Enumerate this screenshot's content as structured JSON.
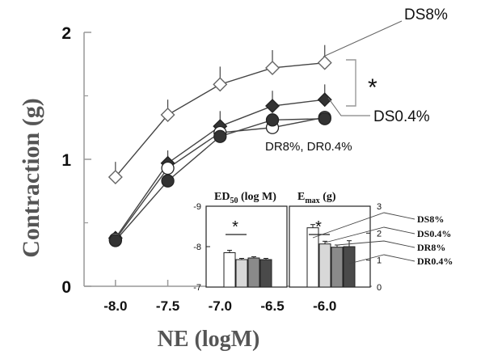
{
  "chart_data": {
    "main": {
      "type": "line",
      "xlabel": "NE (logM)",
      "ylabel": "Contraction (g)",
      "x": [
        -8.0,
        -7.5,
        -7.0,
        -6.5,
        -6.0
      ],
      "x_tick_labels": [
        "-8.0",
        "-7.5",
        "-7.0",
        "-6.5",
        "-6.0"
      ],
      "y_tick_labels": [
        "0",
        "1",
        "2"
      ],
      "ylim": [
        0,
        2
      ],
      "xlim": [
        -8.3,
        -5.55
      ],
      "series": [
        {
          "name": "DS8%",
          "marker": "diamond-open",
          "values": [
            0.86,
            1.35,
            1.59,
            1.72,
            1.76
          ],
          "err": [
            0.12,
            0.12,
            0.14,
            0.14,
            0.14
          ]
        },
        {
          "name": "DS0.4%",
          "marker": "diamond-filled",
          "values": [
            0.38,
            0.97,
            1.26,
            1.42,
            1.47
          ],
          "err": [
            0.0,
            0.1,
            0.12,
            0.12,
            0.12
          ]
        },
        {
          "name": "DR8%",
          "marker": "circle-open",
          "values": [
            0.37,
            0.93,
            1.21,
            1.25,
            1.33
          ],
          "err": [
            0.0,
            0.1,
            0.1,
            0.0,
            0.0
          ]
        },
        {
          "name": "DR0.4%",
          "marker": "circle-filled",
          "values": [
            0.36,
            0.83,
            1.18,
            1.31,
            1.32
          ],
          "err": [
            0.0,
            0.0,
            0.0,
            0.0,
            0.0
          ]
        }
      ],
      "annotations": {
        "ds8_label": "DS8%",
        "ds04_label": "DS0.4%",
        "dr_label": "DR8%, DR0.4%",
        "significance": "*"
      }
    },
    "insets": [
      {
        "type": "bar",
        "title_main": "ED",
        "title_sub": "50",
        "title_rest": " (log M)",
        "y_tick_labels": [
          "-9",
          "-8",
          "-7"
        ],
        "ylim": [
          -7,
          -9
        ],
        "categories": [
          "DS8%",
          "DS0.4%",
          "DR8%",
          "DR0.4%"
        ],
        "values": [
          -7.85,
          -7.68,
          -7.72,
          -7.68
        ],
        "err": [
          0.06,
          0.03,
          0.03,
          0.03
        ],
        "significance": "*"
      },
      {
        "type": "bar",
        "title_main": "E",
        "title_sub": "max",
        "title_rest": " (g)",
        "y_tick_labels": [
          "3",
          "2",
          "1",
          "0"
        ],
        "ylim": [
          0,
          3
        ],
        "categories": [
          "DS8%",
          "DS0.4%",
          "DR8%",
          "DR0.4%"
        ],
        "values": [
          2.2,
          1.6,
          1.48,
          1.5
        ],
        "err": [
          0.12,
          0.1,
          0.08,
          0.22
        ],
        "significance": "*"
      }
    ],
    "inset_legend": [
      "DS8%",
      "DS0.4%",
      "DR8%",
      "DR0.4%"
    ],
    "colors": {
      "axis": "#999999",
      "line": "#444444",
      "open_marker": "#ffffff",
      "filled_marker": "#333333",
      "significance": "#999999"
    }
  }
}
